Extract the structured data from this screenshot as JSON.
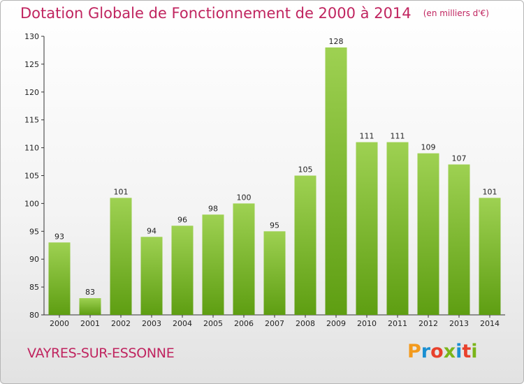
{
  "header": {
    "title": "Dotation Globale de Fonctionnement de 2000 à 2014",
    "unit": "(en milliers d'€)"
  },
  "footer": {
    "commune": "VAYRES-SUR-ESSONNE",
    "brand": "Proxiti"
  },
  "colors": {
    "accent": "#c0245f",
    "bar_top": "#9ed152",
    "bar_bottom": "#5e9e12",
    "brand_letters": [
      "#f39a1d",
      "#1a8fd2",
      "#e8412c",
      "#7bb51a",
      "#1a8fd2",
      "#e8412c",
      "#7bb51a"
    ]
  },
  "chart_data": {
    "type": "bar",
    "title": "Dotation Globale de Fonctionnement de 2000 à 2014",
    "subtitle": "(en milliers d'€)",
    "xlabel": "",
    "ylabel": "",
    "categories": [
      "2000",
      "2001",
      "2002",
      "2003",
      "2004",
      "2005",
      "2006",
      "2007",
      "2008",
      "2009",
      "2010",
      "2011",
      "2012",
      "2013",
      "2014"
    ],
    "values": [
      93,
      83,
      101,
      94,
      96,
      98,
      100,
      95,
      105,
      128,
      111,
      111,
      109,
      107,
      101
    ],
    "ylim": [
      80,
      130
    ],
    "yticks": [
      80,
      85,
      90,
      95,
      100,
      105,
      110,
      115,
      120,
      125,
      130
    ],
    "grid": false,
    "legend": "none"
  }
}
